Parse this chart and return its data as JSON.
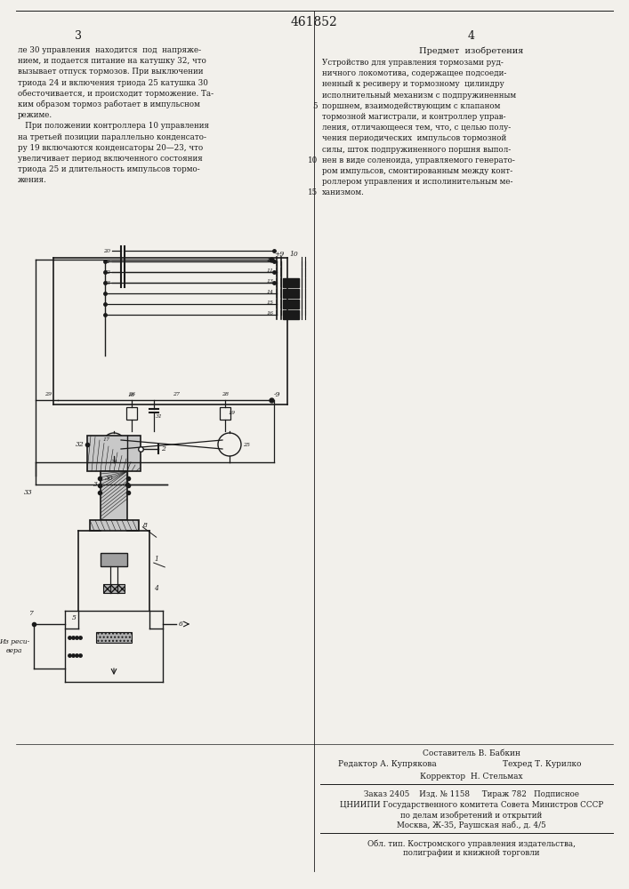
{
  "page_number": "461852",
  "col_left": "3",
  "col_right": "4",
  "bg_color": "#f2f0eb",
  "text_color": "#1a1a1a",
  "left_text": [
    "ле 30 управления  находится  под  напряже-",
    "нием, и подается питание на катушку 32, что",
    "вызывает отпуск тормозов. При выключении",
    "триода 24 и включения триода 25 катушка 30",
    "обесточивается, и происходит торможение. Та-",
    "ким образом тормоз работает в импульсном",
    "режиме.",
    "   При положении контроллера 10 управления",
    "на третьей позиции параллельно конденсато-",
    "ру 19 включаются конденсаторы 20—23, что",
    "увеличивает период включенного состояния",
    "триода 25 и длительность импульсов тормо-",
    "жения."
  ],
  "right_title": "Предмет  изобретения",
  "right_text": [
    "Устройство для управления тормозами руд-",
    "ничного локомотива, содержащее подсоеди-",
    "ненный к ресиверу и тормозному  цилиндру",
    "исполнительный механизм с подпружиненным",
    "поршнем, взаимодействующим с клапаном",
    "тормозной магистрали, и контроллер управ-",
    "ления, отличающееся тем, что, с целью полу-",
    "чения периодических  импульсов тормозной",
    "силы, шток подпружиненного поршня выпол-",
    "нен в виде соленоида, управляемого генерато-",
    "ром импульсов, смонтированным между конт-",
    "роллером управления и исполинительным ме-",
    "ханизмом."
  ],
  "footer_composer": "Составитель В. Бабкин",
  "footer_editor": "Редактор А. Купрякова",
  "footer_techred": "Техред Т. Курилко",
  "footer_corrector": "Корректор  Н. Стельмах",
  "footer_order": "Заказ 2405    Изд. № 1158     Тираж 782   Подписное",
  "footer_cniip": "ЦНИИПИ Государственного комитета Совета Министров СССР",
  "footer_affairs": "по делам изобретений и открытий",
  "footer_moscow": "Москва, Ж-35, Раушская наб., д. 4/5",
  "footer_oblast": "Обл. тип. Костромского управления издательства,",
  "footer_polygraph": "полиграфии и книжной торговли"
}
